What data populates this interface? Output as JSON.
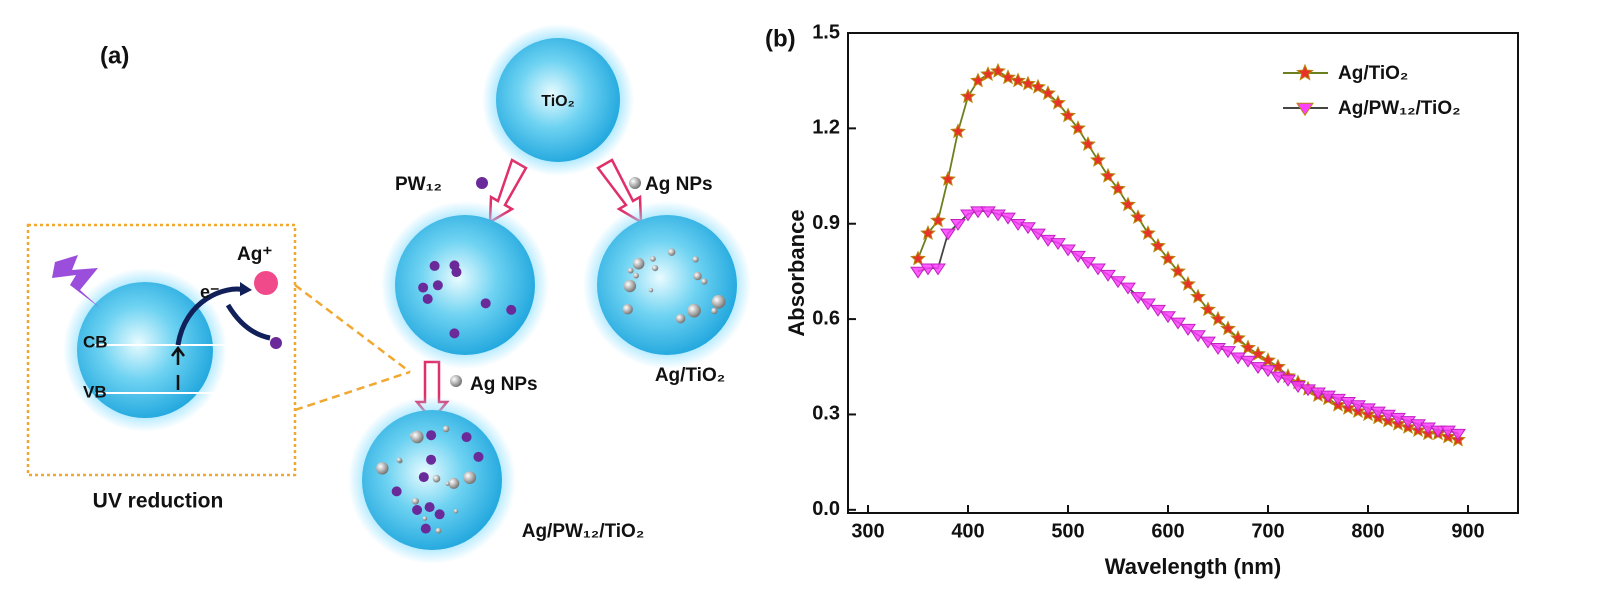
{
  "diagram": {
    "label": "(a)",
    "source": "TiO₂",
    "steps": [
      {
        "reagent": "PW₁₂"
      },
      {
        "reagent": "Ag NPs",
        "product": "Ag/TiO₂"
      },
      {
        "reagent": "Ag NPs",
        "product": "Ag/PW₁₂/TiO₂"
      }
    ],
    "inset": {
      "cation": "Ag⁺",
      "electron": "e⁻",
      "bands": [
        "CB",
        "VB"
      ],
      "caption": "UV reduction"
    }
  },
  "chart_data": {
    "type": "line",
    "panel_label": "(b)",
    "x_label": "Wavelength (nm)",
    "y_label": "Absorbance",
    "x": [
      350,
      360,
      370,
      380,
      390,
      400,
      410,
      420,
      430,
      440,
      450,
      460,
      470,
      480,
      490,
      500,
      510,
      520,
      530,
      540,
      550,
      560,
      570,
      580,
      590,
      600,
      610,
      620,
      630,
      640,
      650,
      660,
      670,
      680,
      690,
      700,
      710,
      720,
      730,
      740,
      750,
      760,
      770,
      780,
      790,
      800,
      810,
      820,
      830,
      840,
      850,
      860,
      870,
      880,
      890
    ],
    "series": [
      {
        "name": "Ag/TiO₂",
        "color": "#e8312a",
        "line_color": "#6b7f1e",
        "marker": "star",
        "values": [
          0.79,
          0.87,
          0.91,
          1.04,
          1.19,
          1.3,
          1.35,
          1.37,
          1.38,
          1.36,
          1.35,
          1.34,
          1.33,
          1.31,
          1.28,
          1.24,
          1.2,
          1.15,
          1.1,
          1.05,
          1.01,
          0.96,
          0.92,
          0.87,
          0.83,
          0.79,
          0.75,
          0.71,
          0.67,
          0.63,
          0.6,
          0.57,
          0.54,
          0.51,
          0.49,
          0.47,
          0.45,
          0.42,
          0.4,
          0.38,
          0.36,
          0.35,
          0.33,
          0.32,
          0.31,
          0.3,
          0.29,
          0.28,
          0.27,
          0.26,
          0.25,
          0.24,
          0.24,
          0.23,
          0.22
        ]
      },
      {
        "name": "Ag/PW₁₂/TiO₂",
        "color": "#ff40ff",
        "line_color": "#444444",
        "marker": "triangle-down",
        "values": [
          0.75,
          0.76,
          0.76,
          0.87,
          0.9,
          0.93,
          0.94,
          0.94,
          0.93,
          0.92,
          0.9,
          0.89,
          0.87,
          0.85,
          0.84,
          0.82,
          0.8,
          0.78,
          0.76,
          0.74,
          0.72,
          0.7,
          0.67,
          0.65,
          0.63,
          0.61,
          0.59,
          0.57,
          0.55,
          0.53,
          0.51,
          0.5,
          0.48,
          0.47,
          0.45,
          0.44,
          0.42,
          0.41,
          0.39,
          0.38,
          0.37,
          0.36,
          0.35,
          0.34,
          0.33,
          0.32,
          0.31,
          0.3,
          0.29,
          0.28,
          0.27,
          0.26,
          0.25,
          0.25,
          0.24
        ]
      }
    ],
    "xlim": [
      280,
      950
    ],
    "ylim": [
      -0.01,
      1.5
    ],
    "xticks": [
      300,
      400,
      500,
      600,
      700,
      800,
      900
    ],
    "yticks": [
      {
        "value": 0,
        "label": "0.0"
      },
      0.3,
      0.6,
      0.9,
      1.2,
      1.5
    ],
    "legend": "upper right"
  }
}
